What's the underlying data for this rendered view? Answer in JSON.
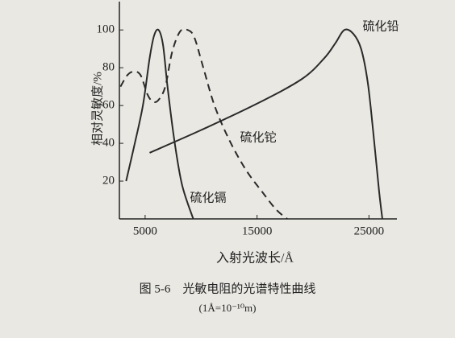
{
  "chart_data": {
    "type": "line",
    "x_label": "入射光波长/Å",
    "y_label": "相对灵敏度/%",
    "caption": "图 5-6　光敏电阻的光谱特性曲线",
    "caption_note": "(1Å=10⁻¹⁰m)",
    "xlim": [
      2700,
      27500
    ],
    "ylim": [
      0,
      115
    ],
    "xticks": [
      5000,
      15000,
      25000
    ],
    "yticks": [
      20,
      40,
      60,
      80,
      100
    ],
    "series": [
      {
        "name": "硫化镉",
        "color": "#2a2a2a",
        "style": "solid",
        "x": [
          3300,
          4000,
          4800,
          5400,
          5800,
          6200,
          6600,
          7000,
          7600,
          8300,
          9300
        ],
        "values": [
          20,
          38,
          60,
          85,
          97,
          100,
          92,
          70,
          42,
          18,
          0
        ]
      },
      {
        "name": "硫化铊",
        "color": "#2a2a2a",
        "style": "dashed",
        "x": [
          2800,
          3400,
          4000,
          4600,
          5200,
          5700,
          6200,
          6800,
          7400,
          8100,
          8800,
          9400,
          10200,
          11200,
          12500,
          14000,
          15500,
          16700,
          17700
        ],
        "values": [
          70,
          76,
          78,
          76,
          66,
          62,
          63,
          70,
          88,
          99,
          100,
          96,
          80,
          60,
          42,
          26,
          14,
          5,
          0
        ]
      },
      {
        "name": "硫化铅",
        "color": "#2a2a2a",
        "style": "solid",
        "x": [
          5400,
          10000,
          15000,
          19000,
          21000,
          22000,
          22800,
          23600,
          24300,
          24900,
          25400,
          25900,
          26200
        ],
        "values": [
          35,
          47,
          61,
          74,
          85,
          93,
          100,
          98,
          90,
          72,
          45,
          15,
          0
        ]
      }
    ]
  }
}
